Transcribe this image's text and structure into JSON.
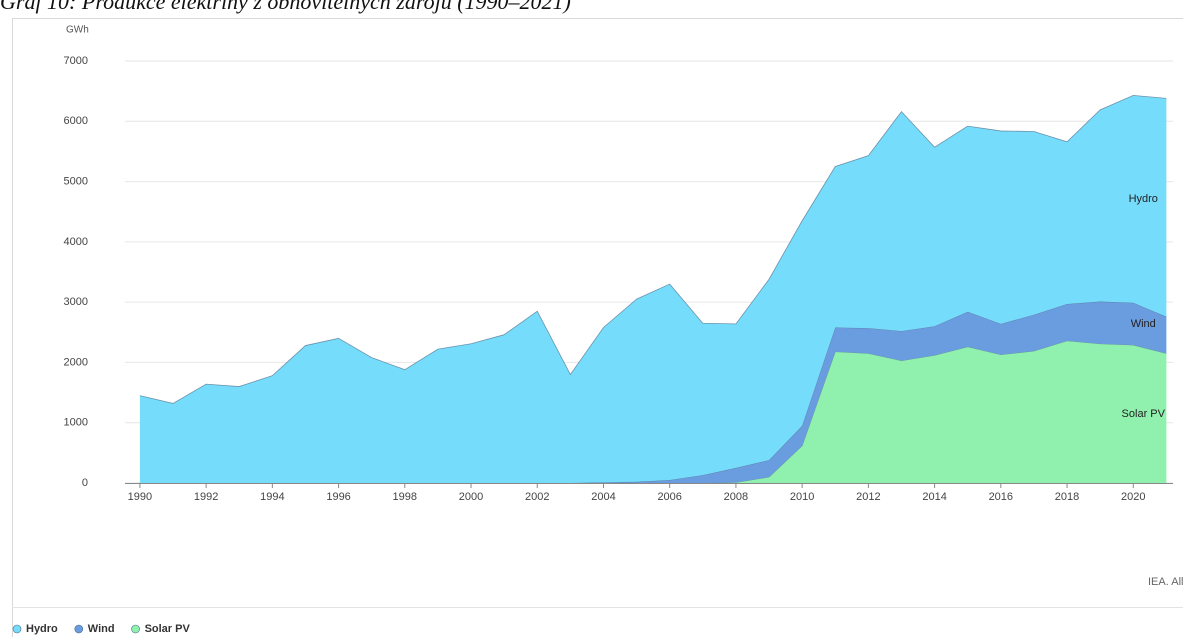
{
  "chart_data": {
    "type": "stacked-area",
    "title": "Graf 10: Produkce elektřiny z obnovitelných zdrojů (1990–2021)",
    "y_label": "GWh",
    "source": "IEA. All rights reserved.",
    "x": [
      1990,
      1991,
      1992,
      1993,
      1994,
      1995,
      1996,
      1997,
      1998,
      1999,
      2000,
      2001,
      2002,
      2003,
      2004,
      2005,
      2006,
      2007,
      2008,
      2009,
      2010,
      2011,
      2012,
      2013,
      2014,
      2015,
      2016,
      2017,
      2018,
      2019,
      2020,
      2021
    ],
    "series": [
      {
        "name": "Hydro",
        "color": "#76dcfb",
        "values": [
          1450,
          1320,
          1640,
          1600,
          1780,
          2280,
          2400,
          2080,
          1880,
          2220,
          2310,
          2460,
          2850,
          1800,
          2570,
          3030,
          3250,
          2520,
          2390,
          3000,
          3400,
          2670,
          2860,
          3640,
          2970,
          3080,
          3200,
          3040,
          2690,
          3180,
          3440,
          3620
        ]
      },
      {
        "name": "Wind",
        "color": "#6a9ce0",
        "values": [
          0,
          0,
          0,
          0,
          0,
          0,
          0,
          0,
          0,
          0,
          0,
          0,
          0,
          0,
          10,
          20,
          50,
          130,
          240,
          280,
          330,
          400,
          420,
          490,
          480,
          580,
          510,
          600,
          610,
          700,
          700,
          610
        ]
      },
      {
        "name": "Solar PV",
        "color": "#90f1af",
        "values": [
          0,
          0,
          0,
          0,
          0,
          0,
          0,
          0,
          0,
          0,
          0,
          0,
          0,
          0,
          0,
          0,
          0,
          0,
          10,
          100,
          620,
          2180,
          2150,
          2030,
          2120,
          2260,
          2130,
          2190,
          2360,
          2310,
          2290,
          2150
        ]
      }
    ],
    "xlim": [
      1989.55,
      2021.2
    ],
    "xticks": [
      1990,
      1992,
      1994,
      1996,
      1998,
      2000,
      2002,
      2004,
      2006,
      2008,
      2010,
      2012,
      2014,
      2016,
      2018,
      2020
    ],
    "ylim": [
      0,
      7000
    ],
    "yticks": [
      0,
      1000,
      2000,
      3000,
      4000,
      5000,
      6000,
      7000
    ],
    "grid": true,
    "legend": "bottom-left"
  }
}
